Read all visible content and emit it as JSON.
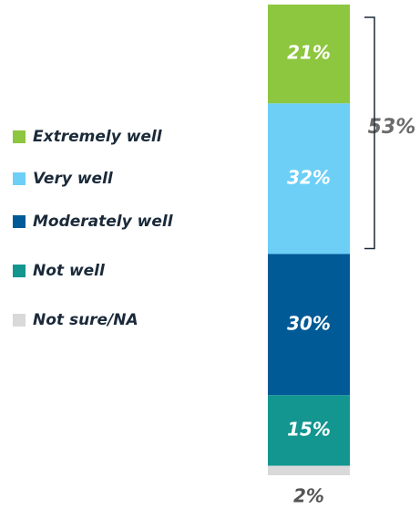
{
  "chart_data": {
    "type": "stacked-bar",
    "series": [
      {
        "name": "Extremely well",
        "color": "#8dc63f",
        "values": [
          21
        ],
        "value_labels": [
          "21%"
        ]
      },
      {
        "name": "Very well",
        "color": "#6dcff6",
        "values": [
          32
        ],
        "value_labels": [
          "32%"
        ]
      },
      {
        "name": "Moderately well",
        "color": "#005a96",
        "values": [
          30
        ],
        "value_labels": [
          "30%"
        ]
      },
      {
        "name": "Not well",
        "color": "#12968f",
        "values": [
          15
        ],
        "value_labels": [
          "15%"
        ]
      },
      {
        "name": "Not sure/NA",
        "color": "#d9d9d9",
        "values": [
          2
        ],
        "value_labels": [
          "2%"
        ]
      }
    ],
    "annotation": "53%"
  }
}
